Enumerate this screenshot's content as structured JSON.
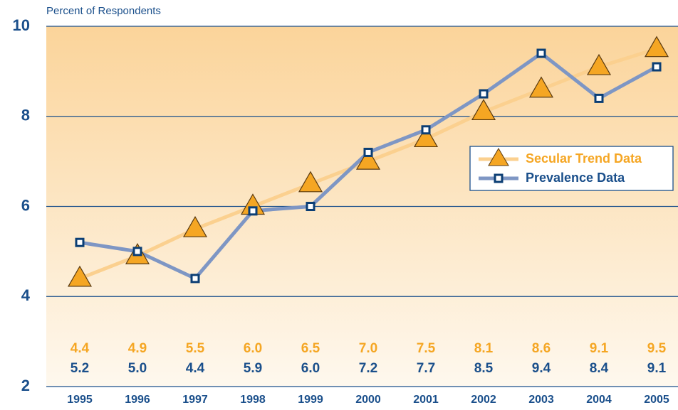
{
  "chart_data": {
    "type": "line",
    "ylabel": "Percent of Respondents",
    "categories": [
      "1995",
      "1996",
      "1997",
      "1998",
      "1999",
      "2000",
      "2001",
      "2002",
      "2003",
      "2004",
      "2005"
    ],
    "series": [
      {
        "name": "Secular Trend Data",
        "color": "#f5a623",
        "line_color": "#fbd08f",
        "marker": "triangle",
        "values": [
          4.4,
          4.9,
          5.5,
          6.0,
          6.5,
          7.0,
          7.5,
          8.1,
          8.6,
          9.1,
          9.5
        ],
        "value_labels": [
          "4.4",
          "4.9",
          "5.5",
          "6.0",
          "6.5",
          "7.0",
          "7.5",
          "8.1",
          "8.6",
          "9.1",
          "9.5"
        ]
      },
      {
        "name": "Prevalence Data",
        "color": "#0b3e74",
        "line_color": "#7e96c4",
        "marker": "square",
        "values": [
          5.2,
          5.0,
          4.4,
          5.9,
          6.0,
          7.2,
          7.7,
          8.5,
          9.4,
          8.4,
          9.1
        ],
        "value_labels": [
          "5.2",
          "5.0",
          "4.4",
          "5.9",
          "6.0",
          "7.2",
          "7.7",
          "8.5",
          "9.4",
          "8.4",
          "9.1"
        ]
      }
    ],
    "ylim": [
      2,
      10
    ],
    "yticks": [
      2,
      4,
      6,
      8,
      10
    ],
    "grid": true,
    "legend": "right"
  }
}
